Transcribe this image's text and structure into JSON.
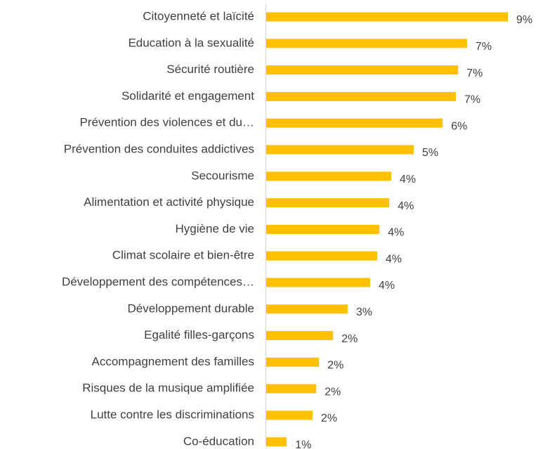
{
  "chart_data": {
    "type": "bar",
    "orientation": "horizontal",
    "color": "#FFC000",
    "categories": [
      "Citoyenneté et laïcité",
      "Education à la sexualité",
      "Sécurité routière",
      "Solidarité et engagement",
      "Prévention des violences et du…",
      "Prévention des conduites addictives",
      "Secourisme",
      "Alimentation et activité physique",
      "Hygiène de vie",
      "Climat scolaire et bien-être",
      "Développement des compétences…",
      "Développement durable",
      "Egalité filles-garçons",
      "Accompagnement des familles",
      "Risques de la musique amplifiée",
      "Lutte contre les discriminations",
      "Co-éducation"
    ],
    "values": [
      8.6,
      7.15,
      6.83,
      6.75,
      6.28,
      5.25,
      4.45,
      4.38,
      4.03,
      3.95,
      3.7,
      2.9,
      2.38,
      1.88,
      1.78,
      1.65,
      0.73
    ],
    "value_labels": [
      "9%",
      "7%",
      "7%",
      "7%",
      "6%",
      "5%",
      "4%",
      "4%",
      "4%",
      "4%",
      "4%",
      "3%",
      "2%",
      "2%",
      "2%",
      "2%",
      "1%"
    ]
  }
}
